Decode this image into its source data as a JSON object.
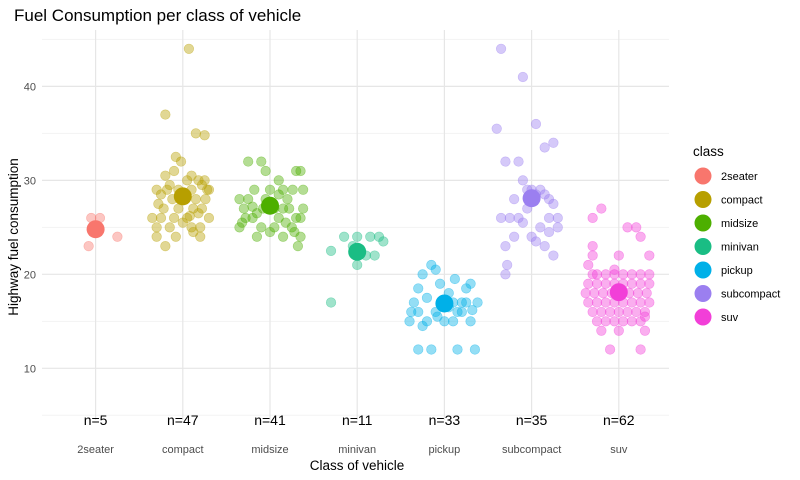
{
  "chart_data": {
    "type": "scatter",
    "title": "Fuel Consumption per class of vehicle",
    "xlabel": "Class of vehicle",
    "ylabel": "Highway fuel consumption",
    "ylim": [
      4.5,
      46
    ],
    "y_ticks": [
      10,
      20,
      30,
      40
    ],
    "grid": true,
    "legend": {
      "title": "class",
      "position": "right"
    },
    "categories": [
      "2seater",
      "compact",
      "midsize",
      "minivan",
      "pickup",
      "subcompact",
      "suv"
    ],
    "counts_label": [
      "n=5",
      "n=47",
      "n=41",
      "n=11",
      "n=33",
      "n=35",
      "n=62"
    ],
    "colors": [
      "#F8766D",
      "#B79F00",
      "#4DAF00",
      "#1ABD84",
      "#00B0E8",
      "#9B7FF0",
      "#F23FD8"
    ],
    "means": [
      24.8,
      28.3,
      27.3,
      22.4,
      16.9,
      28.1,
      18.1
    ],
    "series": [
      {
        "name": "2seater",
        "points": [
          [
            -0.08,
            23
          ],
          [
            -0.05,
            26
          ],
          [
            0.05,
            26
          ],
          [
            0.25,
            24
          ],
          [
            0.0,
            24.8
          ]
        ]
      },
      {
        "name": "compact",
        "points": [
          [
            0.07,
            44
          ],
          [
            -0.2,
            37
          ],
          [
            -0.3,
            29
          ],
          [
            -0.1,
            31
          ],
          [
            -0.08,
            32.5
          ],
          [
            0.15,
            35
          ],
          [
            0.25,
            34.8
          ],
          [
            -0.25,
            26
          ],
          [
            -0.2,
            23
          ],
          [
            -0.15,
            25
          ],
          [
            -0.3,
            24
          ],
          [
            -0.35,
            26
          ],
          [
            -0.05,
            27
          ],
          [
            0.05,
            26
          ],
          [
            0.1,
            25
          ],
          [
            0.2,
            25
          ],
          [
            0.22,
            27
          ],
          [
            0.28,
            29
          ],
          [
            0.25,
            30
          ],
          [
            0.18,
            30
          ],
          [
            0.1,
            29
          ],
          [
            0.0,
            28
          ],
          [
            -0.12,
            28
          ],
          [
            -0.18,
            29
          ],
          [
            -0.22,
            27
          ],
          [
            0.3,
            26
          ],
          [
            0.15,
            28
          ],
          [
            0.05,
            30
          ],
          [
            -0.05,
            29
          ],
          [
            0.12,
            24.5
          ],
          [
            -0.08,
            24
          ],
          [
            0.22,
            29.5
          ],
          [
            -0.25,
            28.5
          ],
          [
            0.3,
            29
          ],
          [
            0.18,
            26.5
          ],
          [
            -0.1,
            26
          ],
          [
            0.08,
            26.2
          ],
          [
            -0.2,
            30.5
          ],
          [
            0.12,
            27
          ],
          [
            -0.28,
            27.5
          ],
          [
            0.26,
            28
          ],
          [
            -0.15,
            29.5
          ],
          [
            0.0,
            25.5
          ],
          [
            0.1,
            30.5
          ],
          [
            -0.02,
            32
          ],
          [
            -0.3,
            25
          ],
          [
            0.2,
            24
          ]
        ]
      },
      {
        "name": "midsize",
        "points": [
          [
            -0.25,
            32
          ],
          [
            -0.1,
            32
          ],
          [
            0.1,
            30
          ],
          [
            -0.18,
            29
          ],
          [
            0.0,
            29
          ],
          [
            0.15,
            29
          ],
          [
            0.3,
            31
          ],
          [
            0.35,
            31
          ],
          [
            0.38,
            29
          ],
          [
            -0.35,
            28
          ],
          [
            -0.3,
            27
          ],
          [
            -0.2,
            26
          ],
          [
            -0.1,
            25
          ],
          [
            0.05,
            25
          ],
          [
            0.1,
            26
          ],
          [
            0.15,
            27
          ],
          [
            0.2,
            28
          ],
          [
            0.25,
            25
          ],
          [
            0.3,
            26
          ],
          [
            0.35,
            26
          ],
          [
            0.38,
            27
          ],
          [
            0.32,
            23
          ],
          [
            -0.15,
            24
          ],
          [
            0.15,
            24
          ],
          [
            -0.05,
            28
          ],
          [
            0.05,
            27
          ],
          [
            -0.25,
            28
          ],
          [
            -0.35,
            25
          ],
          [
            -0.28,
            26
          ],
          [
            0.22,
            27
          ],
          [
            -0.08,
            27
          ],
          [
            0.28,
            24.5
          ],
          [
            -0.15,
            26.5
          ],
          [
            0.0,
            24.5
          ],
          [
            0.18,
            25.5
          ],
          [
            -0.32,
            25.5
          ],
          [
            0.1,
            28.5
          ],
          [
            -0.2,
            27.2
          ],
          [
            0.26,
            29
          ],
          [
            -0.05,
            31
          ],
          [
            0.35,
            24
          ]
        ]
      },
      {
        "name": "minivan",
        "points": [
          [
            -0.3,
            22.5
          ],
          [
            -0.15,
            24
          ],
          [
            0.0,
            24
          ],
          [
            0.15,
            24
          ],
          [
            0.3,
            23.5
          ],
          [
            -0.3,
            17
          ],
          [
            0.0,
            21
          ],
          [
            0.1,
            22
          ],
          [
            0.2,
            22
          ],
          [
            -0.05,
            23
          ],
          [
            0.25,
            24
          ]
        ]
      },
      {
        "name": "pickup",
        "points": [
          [
            -0.35,
            17
          ],
          [
            -0.3,
            18.5
          ],
          [
            -0.25,
            20
          ],
          [
            -0.15,
            21
          ],
          [
            -0.1,
            20.5
          ],
          [
            -0.05,
            19
          ],
          [
            0.05,
            18
          ],
          [
            0.1,
            17
          ],
          [
            0.15,
            16
          ],
          [
            0.2,
            17
          ],
          [
            0.25,
            17
          ],
          [
            0.3,
            19
          ],
          [
            -0.4,
            15
          ],
          [
            -0.3,
            16
          ],
          [
            -0.2,
            15
          ],
          [
            -0.1,
            16
          ],
          [
            0.0,
            15
          ],
          [
            0.1,
            15
          ],
          [
            0.2,
            16
          ],
          [
            0.3,
            15
          ],
          [
            0.38,
            17
          ],
          [
            -0.3,
            12
          ],
          [
            -0.15,
            12
          ],
          [
            0.15,
            12
          ],
          [
            0.35,
            12
          ],
          [
            -0.38,
            16
          ],
          [
            0.05,
            16.5
          ],
          [
            -0.2,
            17.5
          ],
          [
            0.25,
            18.5
          ],
          [
            -0.08,
            15.5
          ],
          [
            0.12,
            19.5
          ],
          [
            -0.25,
            14.5
          ],
          [
            0.32,
            16.2
          ]
        ]
      },
      {
        "name": "subcompact",
        "points": [
          [
            -0.35,
            44
          ],
          [
            -0.1,
            41
          ],
          [
            0.05,
            36
          ],
          [
            -0.4,
            35.5
          ],
          [
            0.25,
            34
          ],
          [
            0.15,
            33.5
          ],
          [
            -0.3,
            32
          ],
          [
            -0.15,
            32
          ],
          [
            -0.05,
            29
          ],
          [
            0.0,
            29
          ],
          [
            0.05,
            28.5
          ],
          [
            0.1,
            29
          ],
          [
            0.15,
            28.5
          ],
          [
            0.2,
            28
          ],
          [
            -0.35,
            26
          ],
          [
            -0.25,
            26
          ],
          [
            -0.15,
            26
          ],
          [
            -0.1,
            25.5
          ],
          [
            0.0,
            24
          ],
          [
            0.05,
            23.5
          ],
          [
            0.15,
            23
          ],
          [
            0.25,
            22
          ],
          [
            0.3,
            25
          ],
          [
            0.3,
            26
          ],
          [
            -0.2,
            24
          ],
          [
            -0.3,
            23
          ],
          [
            -0.28,
            21
          ],
          [
            -0.3,
            20
          ],
          [
            0.2,
            26
          ],
          [
            -0.05,
            27
          ],
          [
            0.1,
            25
          ],
          [
            -0.2,
            28
          ],
          [
            0.2,
            24.5
          ],
          [
            -0.1,
            30
          ],
          [
            0.25,
            27.5
          ]
        ]
      },
      {
        "name": "suv",
        "points": [
          [
            -0.3,
            26
          ],
          [
            -0.2,
            27
          ],
          [
            0.2,
            25
          ],
          [
            0.1,
            25
          ],
          [
            0.25,
            24
          ],
          [
            -0.3,
            23
          ],
          [
            -0.3,
            22
          ],
          [
            0.35,
            22
          ],
          [
            -0.3,
            20
          ],
          [
            -0.25,
            20
          ],
          [
            -0.15,
            20
          ],
          [
            -0.05,
            20
          ],
          [
            0.05,
            20
          ],
          [
            0.15,
            20
          ],
          [
            0.25,
            20
          ],
          [
            0.35,
            20
          ],
          [
            -0.35,
            19
          ],
          [
            -0.25,
            19
          ],
          [
            -0.15,
            19
          ],
          [
            -0.05,
            19
          ],
          [
            0.05,
            19
          ],
          [
            0.15,
            19
          ],
          [
            0.25,
            19
          ],
          [
            0.35,
            19
          ],
          [
            -0.38,
            18
          ],
          [
            -0.28,
            18
          ],
          [
            -0.18,
            18
          ],
          [
            -0.08,
            18
          ],
          [
            0.02,
            18
          ],
          [
            0.12,
            18
          ],
          [
            0.22,
            18
          ],
          [
            0.32,
            18
          ],
          [
            -0.35,
            17
          ],
          [
            -0.25,
            17
          ],
          [
            -0.15,
            17
          ],
          [
            -0.05,
            17
          ],
          [
            0.05,
            17
          ],
          [
            0.15,
            17
          ],
          [
            0.25,
            17
          ],
          [
            0.35,
            17
          ],
          [
            -0.3,
            16
          ],
          [
            -0.2,
            16
          ],
          [
            -0.1,
            16
          ],
          [
            0.0,
            16
          ],
          [
            0.1,
            16
          ],
          [
            0.2,
            16
          ],
          [
            0.3,
            16
          ],
          [
            -0.25,
            15
          ],
          [
            -0.15,
            15
          ],
          [
            -0.05,
            15
          ],
          [
            0.05,
            15
          ],
          [
            0.15,
            15
          ],
          [
            0.25,
            15
          ],
          [
            -0.2,
            14
          ],
          [
            0.0,
            14
          ],
          [
            0.3,
            14
          ],
          [
            -0.1,
            12
          ],
          [
            0.25,
            12
          ],
          [
            0.0,
            22
          ],
          [
            -0.05,
            20.5
          ],
          [
            0.3,
            15.5
          ],
          [
            -0.35,
            21
          ]
        ]
      }
    ]
  }
}
